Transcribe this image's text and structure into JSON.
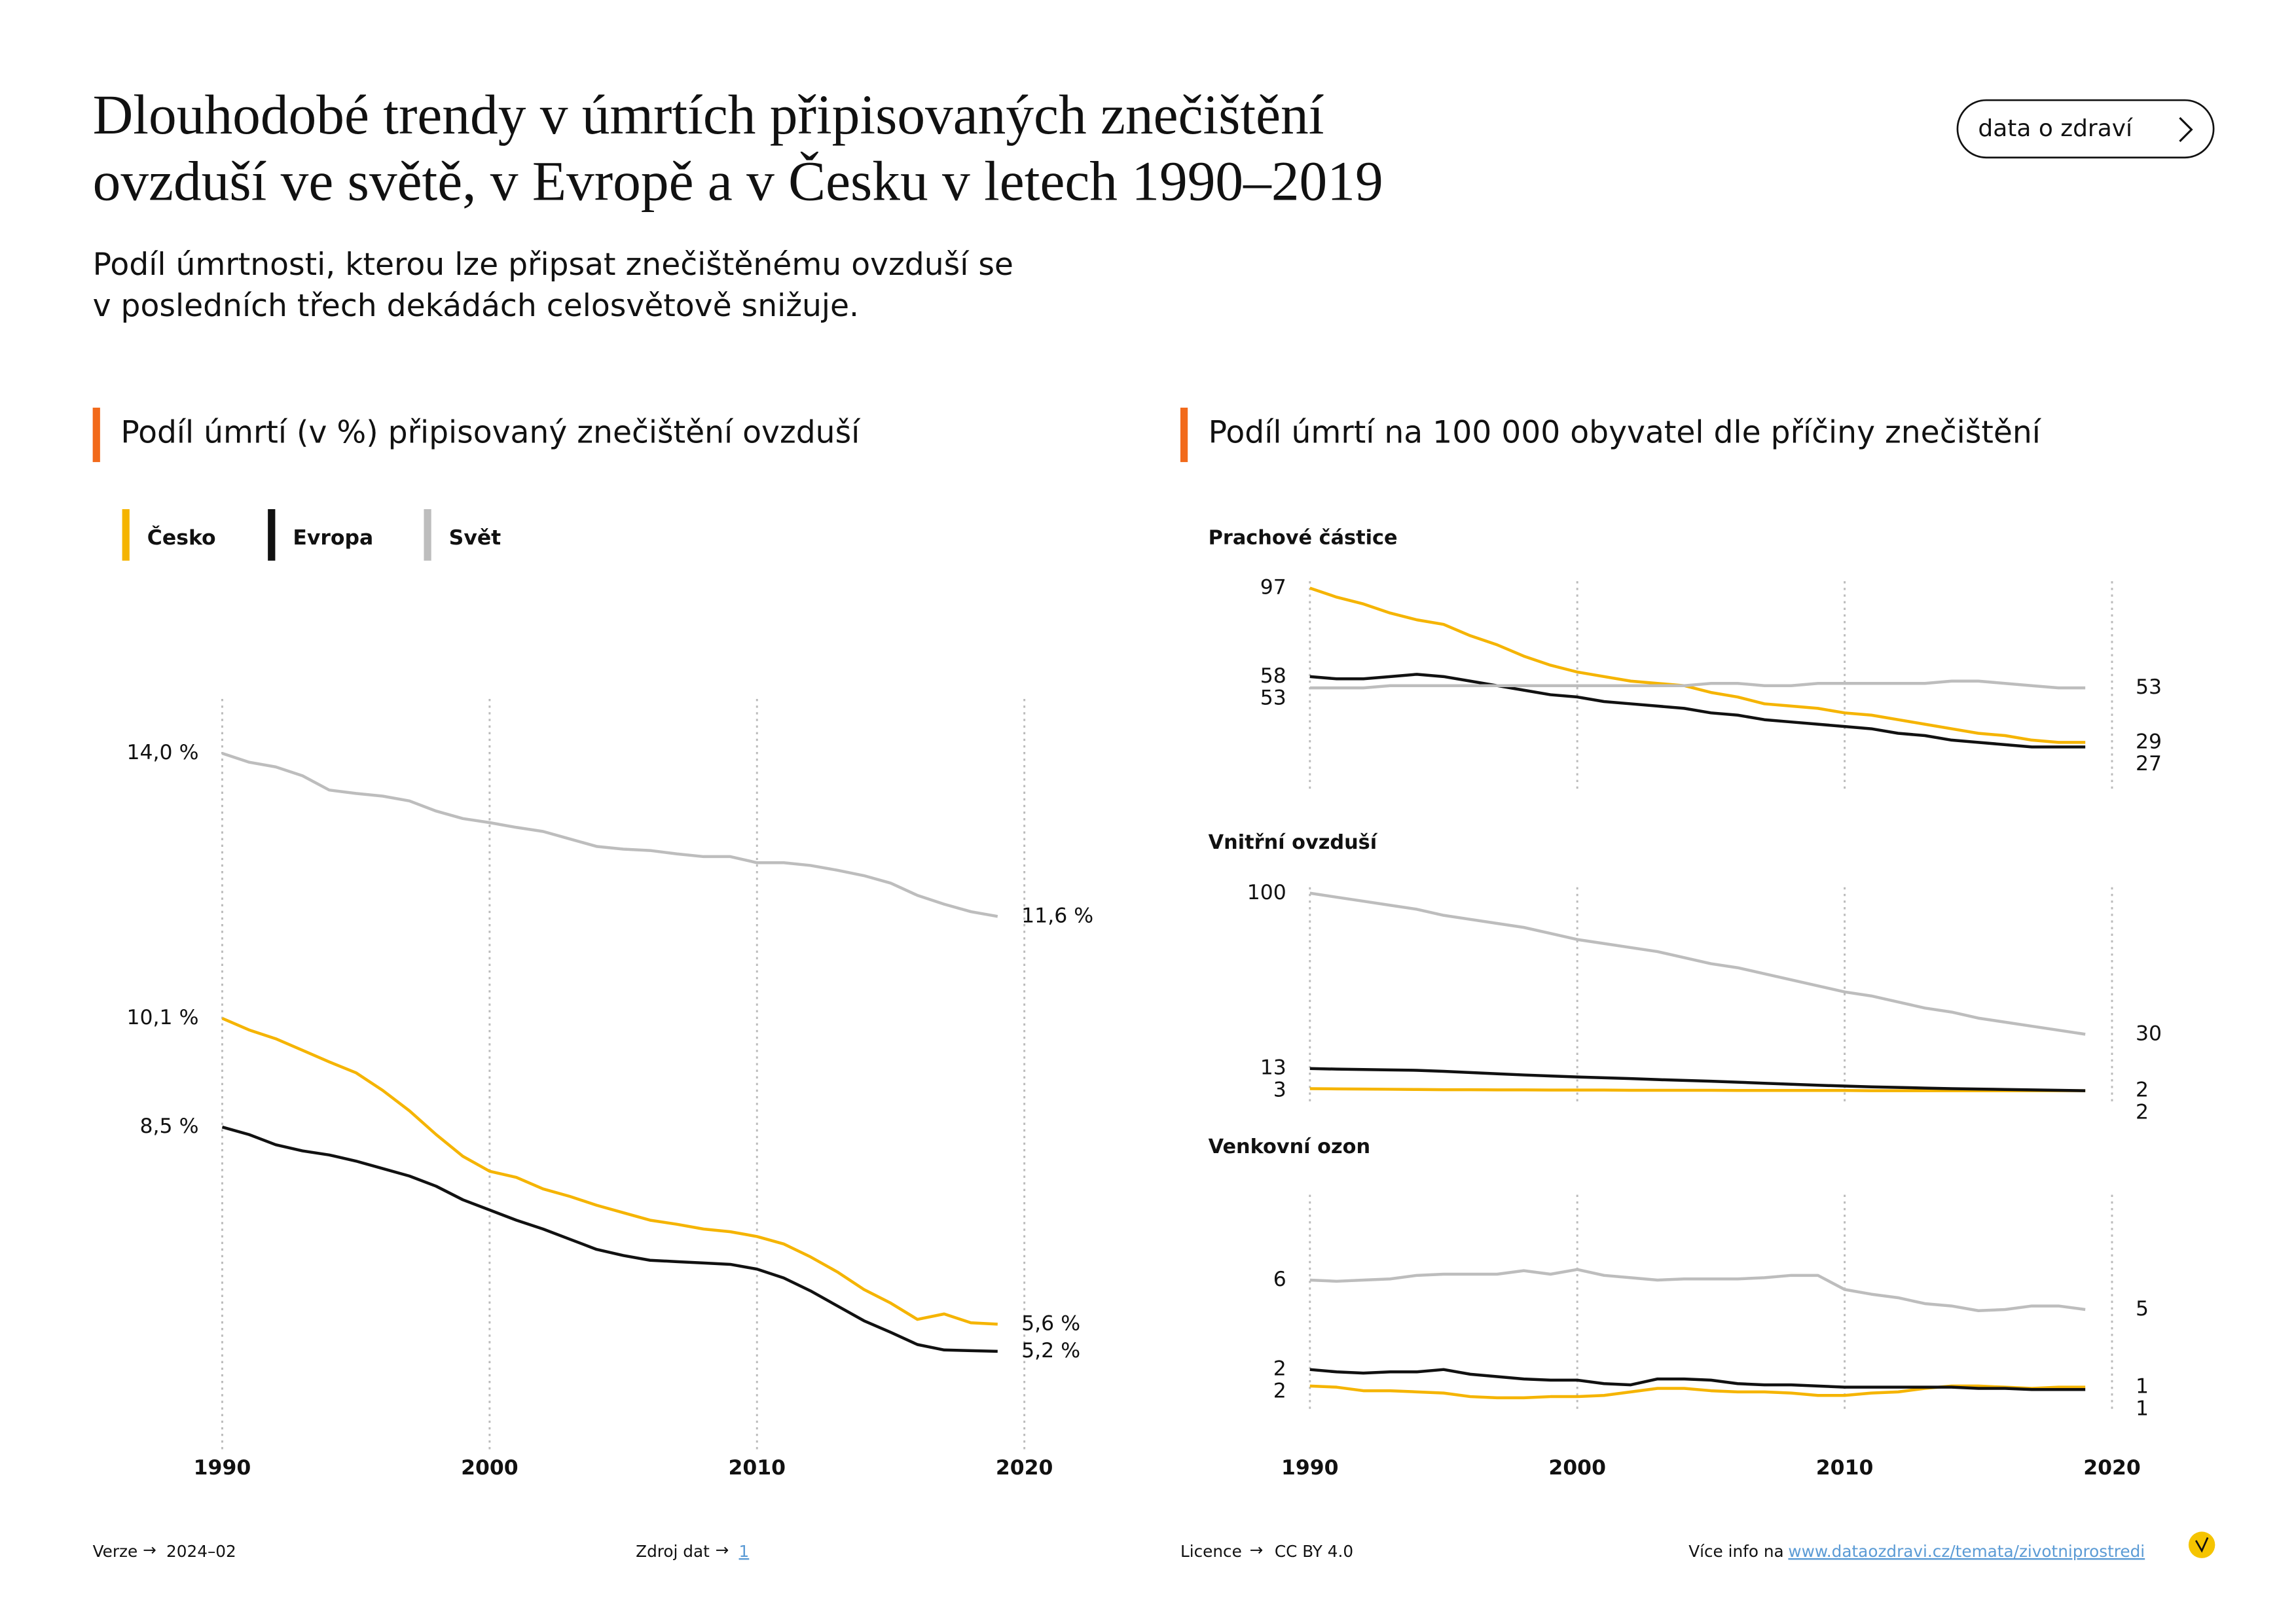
{
  "header": {
    "title_lines": [
      "Dlouhodobé trendy v úmrtích připisovaných znečištění",
      "ovzduší ve světě, v Evropě a v Česku v letech 1990–2019"
    ],
    "subtitle_lines": [
      "Podíl úmrtnosti, kterou lze připsat znečištěnému ovzduší se",
      "v posledních třech dekádách celosvětově snižuje."
    ],
    "button": "data o zdraví"
  },
  "right_section_title": "Podíl úmrtí na 100 000 obyvatel dle příčiny znečištění",
  "chart_data": [
    {
      "type": "line",
      "title": "Podíl úmrtí (v %) připisovaný znečištění ovzduší",
      "x": [
        1990,
        1991,
        1992,
        1993,
        1994,
        1995,
        1996,
        1997,
        1998,
        1999,
        2000,
        2001,
        2002,
        2003,
        2004,
        2005,
        2006,
        2007,
        2008,
        2009,
        2010,
        2011,
        2012,
        2013,
        2014,
        2015,
        2016,
        2017,
        2018,
        2019
      ],
      "xlim": [
        1990,
        2020
      ],
      "xticks": [
        1990,
        2000,
        2010,
        2020
      ],
      "ylim": [
        4.3,
        14.8
      ],
      "grid": true,
      "show_xtick_labels": true,
      "series": [
        {
          "name": "Česko",
          "color": "#f5b400",
          "values": [
            10.1,
            9.93,
            9.8,
            9.63,
            9.46,
            9.3,
            9.04,
            8.74,
            8.39,
            8.07,
            7.85,
            7.76,
            7.59,
            7.48,
            7.35,
            7.24,
            7.13,
            7.07,
            7.0,
            6.96,
            6.89,
            6.78,
            6.59,
            6.37,
            6.11,
            5.91,
            5.67,
            5.75,
            5.62,
            5.6
          ],
          "value_labels": [
            "10,1 %",
            null,
            null,
            null,
            null,
            null,
            null,
            null,
            null,
            null,
            null,
            null,
            null,
            null,
            null,
            null,
            null,
            null,
            null,
            null,
            null,
            null,
            null,
            null,
            null,
            null,
            null,
            null,
            null,
            "5,6 %"
          ]
        },
        {
          "name": "Evropa",
          "color": "#111111",
          "values": [
            8.5,
            8.39,
            8.24,
            8.15,
            8.09,
            8.0,
            7.89,
            7.78,
            7.63,
            7.43,
            7.28,
            7.13,
            7.0,
            6.85,
            6.7,
            6.61,
            6.54,
            6.52,
            6.5,
            6.48,
            6.41,
            6.28,
            6.09,
            5.87,
            5.65,
            5.48,
            5.3,
            5.22,
            5.21,
            5.2
          ],
          "value_labels": [
            "8,5 %",
            null,
            null,
            null,
            null,
            null,
            null,
            null,
            null,
            null,
            null,
            null,
            null,
            null,
            null,
            null,
            null,
            null,
            null,
            null,
            null,
            null,
            null,
            null,
            null,
            null,
            null,
            null,
            null,
            "5,2 %"
          ]
        },
        {
          "name": "Svět",
          "color": "#bdbdbd",
          "values": [
            14.0,
            13.87,
            13.8,
            13.67,
            13.46,
            13.41,
            13.37,
            13.3,
            13.15,
            13.04,
            12.98,
            12.91,
            12.85,
            12.74,
            12.63,
            12.59,
            12.57,
            12.52,
            12.48,
            12.48,
            12.39,
            12.39,
            12.35,
            12.28,
            12.2,
            12.09,
            11.91,
            11.78,
            11.67,
            11.6
          ],
          "value_labels": [
            "14,0 %",
            null,
            null,
            null,
            null,
            null,
            null,
            null,
            null,
            null,
            null,
            null,
            null,
            null,
            null,
            null,
            null,
            null,
            null,
            null,
            null,
            null,
            null,
            null,
            null,
            null,
            null,
            null,
            null,
            "11,6 %"
          ]
        }
      ]
    },
    {
      "type": "line",
      "title": "Prachové částice",
      "x": [
        1990,
        1991,
        1992,
        1993,
        1994,
        1995,
        1996,
        1997,
        1998,
        1999,
        2000,
        2001,
        2002,
        2003,
        2004,
        2005,
        2006,
        2007,
        2008,
        2009,
        2010,
        2011,
        2012,
        2013,
        2014,
        2015,
        2016,
        2017,
        2018,
        2019
      ],
      "xlim": [
        1990,
        2020
      ],
      "xticks": [
        1990,
        2000,
        2010,
        2020
      ],
      "ylim": [
        6,
        100
      ],
      "grid": true,
      "show_xtick_labels": false,
      "series": [
        {
          "color": "#f5b400",
          "values": [
            97,
            93,
            90,
            86,
            83,
            81,
            76,
            72,
            67,
            63,
            60,
            58,
            56,
            55,
            54,
            51,
            49,
            46,
            45,
            44,
            42,
            41,
            39,
            37,
            35,
            33,
            32,
            30,
            29,
            29
          ]
        },
        {
          "color": "#111111",
          "values": [
            58,
            57,
            57,
            58,
            59,
            58,
            56,
            54,
            52,
            50,
            49,
            47,
            46,
            45,
            44,
            42,
            41,
            39,
            38,
            37,
            36,
            35,
            33,
            32,
            30,
            29,
            28,
            27,
            27,
            27
          ]
        },
        {
          "color": "#bdbdbd",
          "values": [
            53,
            53,
            53,
            54,
            54,
            54,
            54,
            54,
            54,
            54,
            54,
            54,
            54,
            54,
            54,
            55,
            55,
            54,
            54,
            55,
            55,
            55,
            55,
            55,
            56,
            56,
            55,
            54,
            53,
            53
          ]
        }
      ]
    },
    {
      "type": "line",
      "title": "Vnitřní ovzduší",
      "x": [
        1990,
        1991,
        1992,
        1993,
        1994,
        1995,
        1996,
        1997,
        1998,
        1999,
        2000,
        2001,
        2002,
        2003,
        2004,
        2005,
        2006,
        2007,
        2008,
        2009,
        2010,
        2011,
        2012,
        2013,
        2014,
        2015,
        2016,
        2017,
        2018,
        2019
      ],
      "xlim": [
        1990,
        2020
      ],
      "xticks": [
        1990,
        2000,
        2010,
        2020
      ],
      "ylim": [
        0,
        100
      ],
      "grid": true,
      "show_xtick_labels": false,
      "series": [
        {
          "color": "#f5b400",
          "values": [
            3,
            2.9,
            2.8,
            2.7,
            2.6,
            2.5,
            2.5,
            2.4,
            2.4,
            2.3,
            2.3,
            2.3,
            2.2,
            2.2,
            2.2,
            2.2,
            2.1,
            2.1,
            2.1,
            2.1,
            2.1,
            2,
            2,
            2,
            2,
            2,
            2,
            2,
            2,
            2
          ]
        },
        {
          "color": "#111111",
          "values": [
            13,
            12.7,
            12.5,
            12.3,
            12.1,
            11.6,
            11,
            10.4,
            9.8,
            9.3,
            8.8,
            8.4,
            8,
            7.5,
            7.1,
            6.7,
            6.2,
            5.7,
            5.2,
            4.7,
            4.3,
            3.9,
            3.6,
            3.3,
            3,
            2.8,
            2.6,
            2.4,
            2.2,
            2
          ]
        },
        {
          "color": "#bdbdbd",
          "values": [
            100,
            98,
            96,
            94,
            92,
            89,
            87,
            85,
            83,
            80,
            77,
            75,
            73,
            71,
            68,
            65,
            63,
            60,
            57,
            54,
            51,
            49,
            46,
            43,
            41,
            38,
            36,
            34,
            32,
            30
          ]
        }
      ]
    },
    {
      "type": "line",
      "title": "Venkovní ozon",
      "x": [
        1990,
        1991,
        1992,
        1993,
        1994,
        1995,
        1996,
        1997,
        1998,
        1999,
        2000,
        2001,
        2002,
        2003,
        2004,
        2005,
        2006,
        2007,
        2008,
        2009,
        2010,
        2011,
        2012,
        2013,
        2014,
        2015,
        2016,
        2017,
        2018,
        2019
      ],
      "xlim": [
        1990,
        2020
      ],
      "xticks": [
        1990,
        2000,
        2010,
        2020
      ],
      "ylim": [
        0.5,
        9.5
      ],
      "grid": true,
      "show_xtick_labels": true,
      "series": [
        {
          "color": "#f5b400",
          "values": [
            1.5,
            1.45,
            1.3,
            1.3,
            1.25,
            1.2,
            1.05,
            1.0,
            1.0,
            1.05,
            1.05,
            1.1,
            1.25,
            1.4,
            1.4,
            1.3,
            1.25,
            1.25,
            1.2,
            1.1,
            1.1,
            1.2,
            1.25,
            1.4,
            1.5,
            1.5,
            1.45,
            1.4,
            1.45,
            1.45
          ],
          "value_labels": [
            "2",
            null,
            null,
            null,
            null,
            null,
            null,
            null,
            null,
            null,
            null,
            null,
            null,
            null,
            null,
            null,
            null,
            null,
            null,
            null,
            null,
            null,
            null,
            null,
            null,
            null,
            null,
            null,
            null,
            "1"
          ]
        },
        {
          "color": "#111111",
          "values": [
            2.2,
            2.1,
            2.05,
            2.1,
            2.1,
            2.2,
            2.0,
            1.9,
            1.8,
            1.75,
            1.75,
            1.6,
            1.55,
            1.8,
            1.8,
            1.75,
            1.6,
            1.55,
            1.55,
            1.5,
            1.45,
            1.45,
            1.45,
            1.45,
            1.45,
            1.4,
            1.4,
            1.35,
            1.35,
            1.35
          ],
          "value_labels": [
            "2",
            null,
            null,
            null,
            null,
            null,
            null,
            null,
            null,
            null,
            null,
            null,
            null,
            null,
            null,
            null,
            null,
            null,
            null,
            null,
            null,
            null,
            null,
            null,
            null,
            null,
            null,
            null,
            null,
            "1"
          ]
        },
        {
          "color": "#bdbdbd",
          "values": [
            6.0,
            5.95,
            6.0,
            6.05,
            6.2,
            6.25,
            6.25,
            6.25,
            6.4,
            6.25,
            6.45,
            6.2,
            6.1,
            6.0,
            6.05,
            6.05,
            6.05,
            6.1,
            6.2,
            6.2,
            5.6,
            5.4,
            5.25,
            5.0,
            4.9,
            4.7,
            4.75,
            4.9,
            4.9,
            4.75
          ],
          "value_labels": [
            "6",
            null,
            null,
            null,
            null,
            null,
            null,
            null,
            null,
            null,
            null,
            null,
            null,
            null,
            null,
            null,
            null,
            null,
            null,
            null,
            null,
            null,
            null,
            null,
            null,
            null,
            null,
            null,
            null,
            "5"
          ]
        }
      ]
    }
  ],
  "footer": {
    "version_label": "Verze",
    "version": "2024–02",
    "source_label": "Zdroj dat",
    "source": "1",
    "license_label": "Licence",
    "license": "CC BY 4.0",
    "info_label": "Více info na",
    "info_link": "www.dataozdravi.cz/temata/zivotniprostredi"
  }
}
